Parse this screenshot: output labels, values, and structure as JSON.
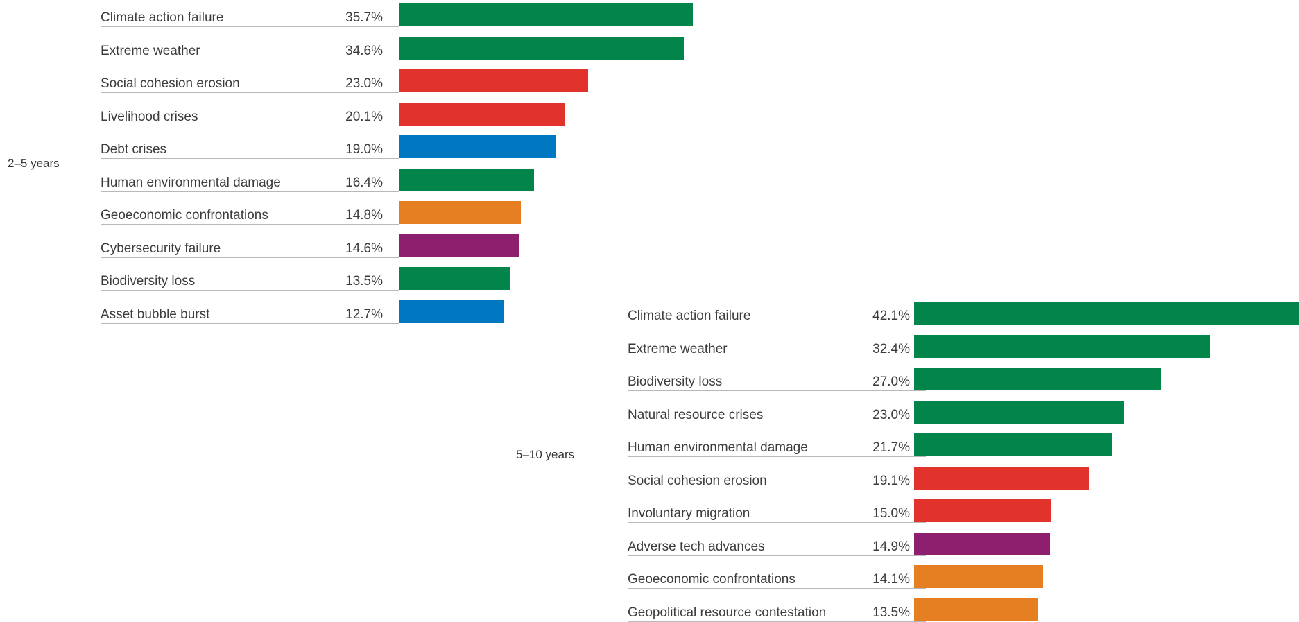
{
  "colors": {
    "environmental": "#03844b",
    "societal": "#e1322b",
    "economic": "#0078c1",
    "geopolitical": "#e67e22",
    "technological": "#8e1f6f"
  },
  "chart_data": [
    {
      "type": "bar",
      "orientation": "horizontal",
      "period_label": "2–5 years",
      "xlim": [
        0,
        42.1
      ],
      "categories": [
        "Climate action failure",
        "Extreme weather",
        "Social cohesion erosion",
        "Livelihood crises",
        "Debt crises",
        "Human environmental damage",
        "Geoeconomic confrontations",
        "Cybersecurity failure",
        "Biodiversity loss",
        "Asset bubble burst"
      ],
      "values": [
        35.7,
        34.6,
        23.0,
        20.1,
        19.0,
        16.4,
        14.8,
        14.6,
        13.5,
        12.7
      ],
      "value_labels": [
        "35.7%",
        "34.6%",
        "23.0%",
        "20.1%",
        "19.0%",
        "16.4%",
        "14.8%",
        "14.6%",
        "13.5%",
        "12.7%"
      ],
      "colors": [
        "environmental",
        "environmental",
        "societal",
        "societal",
        "economic",
        "environmental",
        "geopolitical",
        "technological",
        "environmental",
        "economic"
      ]
    },
    {
      "type": "bar",
      "orientation": "horizontal",
      "period_label": "5–10 years",
      "xlim": [
        0,
        42.1
      ],
      "categories": [
        "Climate action failure",
        "Extreme weather",
        "Biodiversity loss",
        "Natural resource crises",
        "Human environmental damage",
        "Social cohesion erosion",
        "Involuntary migration",
        "Adverse tech advances",
        "Geoeconomic confrontations",
        "Geopolitical resource contestation"
      ],
      "values": [
        42.1,
        32.4,
        27.0,
        23.0,
        21.7,
        19.1,
        15.0,
        14.9,
        14.1,
        13.5
      ],
      "value_labels": [
        "42.1%",
        "32.4%",
        "27.0%",
        "23.0%",
        "21.7%",
        "19.1%",
        "15.0%",
        "14.9%",
        "14.1%",
        "13.5%"
      ],
      "colors": [
        "environmental",
        "environmental",
        "environmental",
        "environmental",
        "environmental",
        "societal",
        "societal",
        "technological",
        "geopolitical",
        "geopolitical"
      ]
    }
  ]
}
